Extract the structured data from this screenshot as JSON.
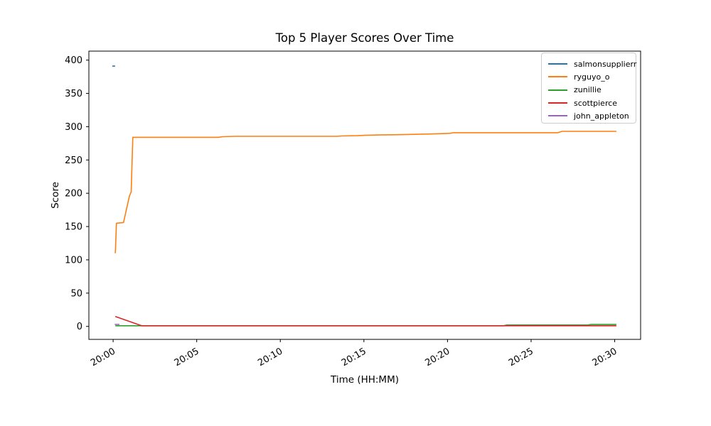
{
  "chart_data": {
    "type": "line",
    "title": "Top 5 Player Scores Over Time",
    "xlabel": "Time (HH:MM)",
    "ylabel": "Score",
    "x_unit": "minutes after 20:00",
    "xlim": [
      -1.45,
      31.55
    ],
    "ylim": [
      -19.5,
      413.5
    ],
    "grid": false,
    "legend_position": "upper right",
    "axis_color": "#000000",
    "x_ticks": [
      {
        "minute": 0,
        "label": "20:00"
      },
      {
        "minute": 5,
        "label": "20:05"
      },
      {
        "minute": 10,
        "label": "20:10"
      },
      {
        "minute": 15,
        "label": "20:15"
      },
      {
        "minute": 20,
        "label": "20:20"
      },
      {
        "minute": 25,
        "label": "20:25"
      },
      {
        "minute": 30,
        "label": "20:30"
      }
    ],
    "y_ticks": [
      0,
      50,
      100,
      150,
      200,
      250,
      300,
      350,
      400
    ],
    "series": [
      {
        "name": "salmonsupplierr",
        "color": "#1f77b4",
        "points": [
          [
            -0.05,
            391
          ],
          [
            0.12,
            391
          ]
        ]
      },
      {
        "name": "ryguyo_o",
        "color": "#ff7f0e",
        "points": [
          [
            0.13,
            110
          ],
          [
            0.2,
            155
          ],
          [
            0.62,
            156
          ],
          [
            0.98,
            196
          ],
          [
            1.08,
            202
          ],
          [
            1.18,
            284
          ],
          [
            6.3,
            284
          ],
          [
            6.55,
            285
          ],
          [
            7.3,
            285.5
          ],
          [
            13.4,
            285.5
          ],
          [
            13.65,
            286
          ],
          [
            14.6,
            286.5
          ],
          [
            15.05,
            287
          ],
          [
            15.9,
            287.5
          ],
          [
            17.1,
            288
          ],
          [
            19.0,
            289
          ],
          [
            20.15,
            290
          ],
          [
            20.35,
            291
          ],
          [
            26.6,
            291
          ],
          [
            26.85,
            293
          ],
          [
            30.1,
            293
          ]
        ]
      },
      {
        "name": "zunillie",
        "color": "#2ca02c",
        "points": [
          [
            0.13,
            1
          ],
          [
            23.35,
            1
          ],
          [
            23.55,
            2
          ],
          [
            28.4,
            2
          ],
          [
            28.6,
            3
          ],
          [
            30.1,
            3
          ]
        ]
      },
      {
        "name": "scottpierce",
        "color": "#d62728",
        "points": [
          [
            0.13,
            15
          ],
          [
            1.7,
            1
          ],
          [
            30.1,
            1
          ]
        ]
      },
      {
        "name": "john_appleton",
        "color": "#9467bd",
        "points": [
          [
            0.1,
            3
          ],
          [
            0.38,
            3
          ]
        ]
      }
    ]
  }
}
